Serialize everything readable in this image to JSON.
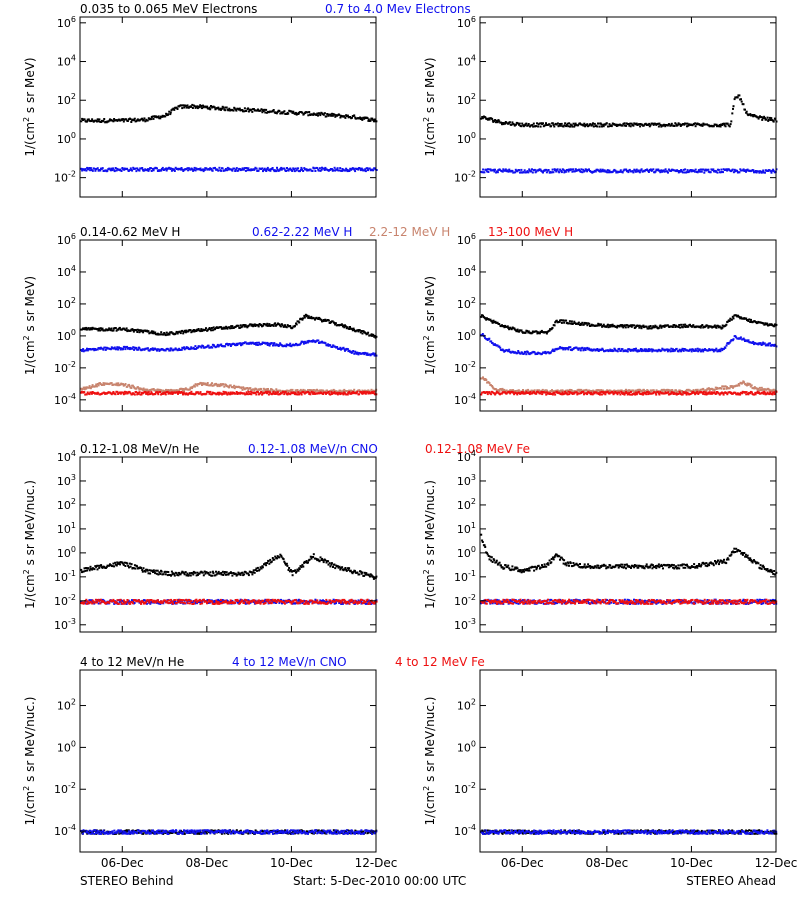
{
  "footer": {
    "left": "STEREO Behind",
    "center": "Start:  5-Dec-2010 00:00 UTC",
    "right": "STEREO Ahead"
  },
  "colors": {
    "black": "#000000",
    "blue": "#1010ee",
    "tan": "#c8846e",
    "red": "#ee1010"
  },
  "rows": [
    {
      "legend": [
        {
          "text": "0.035 to 0.065 MeV Electrons",
          "color": "#000000"
        },
        {
          "text": "0.7 to 4.0 Mev Electrons",
          "color": "#1010ee"
        }
      ]
    },
    {
      "legend": [
        {
          "text": "0.14-0.62 MeV H",
          "color": "#000000"
        },
        {
          "text": "0.62-2.22 MeV H",
          "color": "#1010ee"
        },
        {
          "text": "2.2-12 MeV H",
          "color": "#c8846e"
        },
        {
          "text": "13-100 MeV H",
          "color": "#ee1010"
        }
      ]
    },
    {
      "legend": [
        {
          "text": "0.12-1.08 MeV/n He",
          "color": "#000000"
        },
        {
          "text": "0.12-1.08 MeV/n CNO",
          "color": "#1010ee"
        },
        {
          "text": "0.12-1.08 MeV Fe",
          "color": "#ee1010"
        }
      ]
    },
    {
      "legend": [
        {
          "text": "4 to 12 MeV/n He",
          "color": "#000000"
        },
        {
          "text": "4 to 12 MeV/n CNO",
          "color": "#1010ee"
        },
        {
          "text": "4 to 12 MeV Fe",
          "color": "#ee1010"
        }
      ]
    }
  ],
  "chart_data": [
    {
      "id": "behind-electrons",
      "type": "scatter",
      "spacecraft": "STEREO Behind",
      "ylabel": "1/(cm2 s sr MeV)",
      "yscale": "log",
      "ylim": [
        0.001,
        2000000
      ],
      "yticks": [
        "10-2",
        "100",
        "102",
        "104",
        "106"
      ],
      "ytick_values": [
        0.01,
        1,
        100,
        10000,
        1000000
      ],
      "xlim": [
        0,
        7
      ],
      "xticks": [
        "06-Dec",
        "08-Dec",
        "10-Dec",
        "12-Dec"
      ],
      "xtick_values": [
        1,
        3,
        5,
        7
      ],
      "series": [
        {
          "name": "0.035 to 0.065 MeV Electrons",
          "color": "#000000",
          "x": [
            0,
            1,
            1.5,
            2,
            2.3,
            2.6,
            3.5,
            4.5,
            5.5,
            6.5,
            7
          ],
          "y": [
            10,
            10,
            11,
            18,
            50,
            55,
            40,
            30,
            22,
            15,
            10
          ]
        },
        {
          "name": "0.7 to 4.0 Mev Electrons",
          "color": "#1010ee",
          "x": [
            0,
            1,
            2,
            3,
            4,
            5,
            6,
            7
          ],
          "y": [
            0.03,
            0.03,
            0.03,
            0.03,
            0.03,
            0.03,
            0.03,
            0.03
          ]
        }
      ]
    },
    {
      "id": "ahead-electrons",
      "type": "scatter",
      "spacecraft": "STEREO Ahead",
      "ylabel": "1/(cm2 s sr MeV)",
      "yscale": "log",
      "ylim": [
        0.001,
        2000000
      ],
      "yticks": [
        "10-2",
        "100",
        "102",
        "104",
        "106"
      ],
      "ytick_values": [
        0.01,
        1,
        100,
        10000,
        1000000
      ],
      "xlim": [
        0,
        7
      ],
      "xticks": [
        "06-Dec",
        "08-Dec",
        "10-Dec",
        "12-Dec"
      ],
      "xtick_values": [
        1,
        3,
        5,
        7
      ],
      "series": [
        {
          "name": "0.035 to 0.065 MeV Electrons",
          "color": "#000000",
          "x": [
            0,
            0.5,
            1,
            2,
            3,
            4,
            5,
            5.9,
            6,
            6.1,
            6.3,
            6.5,
            7
          ],
          "y": [
            15,
            8,
            6,
            6,
            6,
            6,
            6,
            6,
            120,
            200,
            20,
            15,
            10
          ]
        },
        {
          "name": "0.7 to 4.0 Mev Electrons",
          "color": "#1010ee",
          "x": [
            0,
            1,
            2,
            3,
            4,
            5,
            6,
            7
          ],
          "y": [
            0.025,
            0.025,
            0.025,
            0.025,
            0.025,
            0.025,
            0.025,
            0.025
          ]
        }
      ]
    },
    {
      "id": "behind-protons",
      "type": "scatter",
      "spacecraft": "STEREO Behind",
      "ylabel": "1/(cm2 s sr MeV)",
      "yscale": "log",
      "ylim": [
        2e-05,
        1000000
      ],
      "yticks": [
        "10-4",
        "10-2",
        "100",
        "102",
        "104",
        "106"
      ],
      "ytick_values": [
        0.0001,
        0.01,
        1,
        100,
        10000,
        1000000
      ],
      "xlim": [
        0,
        7
      ],
      "xticks": [
        "06-Dec",
        "08-Dec",
        "10-Dec",
        "12-Dec"
      ],
      "xtick_values": [
        1,
        3,
        5,
        7
      ],
      "series": [
        {
          "name": "0.14-0.62 MeV H",
          "color": "#000000",
          "x": [
            0,
            1,
            2,
            3,
            4,
            4.6,
            5,
            5.3,
            5.8,
            6.3,
            7
          ],
          "y": [
            3,
            3,
            1.5,
            3,
            5,
            6,
            4,
            20,
            10,
            4,
            1
          ]
        },
        {
          "name": "0.62-2.22 MeV H",
          "color": "#1010ee",
          "x": [
            0,
            1,
            2,
            3,
            4,
            5,
            5.5,
            6,
            6.5,
            7
          ],
          "y": [
            0.15,
            0.2,
            0.15,
            0.25,
            0.4,
            0.3,
            0.6,
            0.25,
            0.1,
            0.08
          ]
        },
        {
          "name": "2.2-12 MeV H",
          "color": "#c8846e",
          "x": [
            0,
            0.5,
            1,
            1.5,
            2,
            2.5,
            2.8,
            3.3,
            4,
            5,
            6,
            7
          ],
          "y": [
            0.0005,
            0.0012,
            0.001,
            0.0005,
            0.0004,
            0.0005,
            0.0012,
            0.001,
            0.0005,
            0.0004,
            0.0004,
            0.0004
          ]
        },
        {
          "name": "13-100 MeV H",
          "color": "#ee1010",
          "x": [
            0,
            1,
            2,
            3,
            4,
            5,
            6,
            7
          ],
          "y": [
            0.0003,
            0.0003,
            0.0003,
            0.0003,
            0.0003,
            0.0003,
            0.0003,
            0.0003
          ]
        }
      ]
    },
    {
      "id": "ahead-protons",
      "type": "scatter",
      "spacecraft": "STEREO Ahead",
      "ylabel": "1/(cm2 s sr MeV)",
      "yscale": "log",
      "ylim": [
        2e-05,
        1000000
      ],
      "yticks": [
        "10-4",
        "10-2",
        "100",
        "102",
        "104",
        "106"
      ],
      "ytick_values": [
        0.0001,
        0.01,
        1,
        100,
        10000,
        1000000
      ],
      "xlim": [
        0,
        7
      ],
      "xticks": [
        "06-Dec",
        "08-Dec",
        "10-Dec",
        "12-Dec"
      ],
      "xtick_values": [
        1,
        3,
        5,
        7
      ],
      "series": [
        {
          "name": "0.14-0.62 MeV H",
          "color": "#000000",
          "x": [
            0,
            0.5,
            1,
            1.6,
            1.8,
            2.5,
            3,
            4,
            5,
            5.7,
            6,
            6.5,
            7
          ],
          "y": [
            20,
            5,
            2,
            2,
            10,
            6,
            5,
            4,
            5,
            4,
            20,
            8,
            5
          ]
        },
        {
          "name": "0.62-2.22 MeV H",
          "color": "#1010ee",
          "x": [
            0,
            0.3,
            0.5,
            1,
            1.6,
            1.8,
            3,
            4,
            5,
            5.7,
            6,
            6.5,
            7
          ],
          "y": [
            1.5,
            0.4,
            0.15,
            0.1,
            0.1,
            0.2,
            0.15,
            0.15,
            0.15,
            0.15,
            1,
            0.4,
            0.3
          ]
        },
        {
          "name": "2.2-12 MeV H",
          "color": "#c8846e",
          "x": [
            0,
            0.1,
            0.3,
            0.6,
            1,
            3,
            5,
            6,
            6.2,
            6.5,
            7
          ],
          "y": [
            0.003,
            0.002,
            0.0006,
            0.0004,
            0.0004,
            0.0004,
            0.0004,
            0.0008,
            0.0015,
            0.0006,
            0.0004
          ]
        },
        {
          "name": "13-100 MeV H",
          "color": "#ee1010",
          "x": [
            0,
            1,
            2,
            3,
            4,
            5,
            6,
            7
          ],
          "y": [
            0.0003,
            0.0003,
            0.0003,
            0.0003,
            0.0003,
            0.0003,
            0.0003,
            0.0003
          ]
        }
      ]
    },
    {
      "id": "behind-ions-low",
      "type": "scatter",
      "spacecraft": "STEREO Behind",
      "ylabel": "1/(cm2 s sr MeV/nuc.)",
      "yscale": "log",
      "ylim": [
        0.0005,
        10000
      ],
      "yticks": [
        "10-3",
        "10-2",
        "10-1",
        "100",
        "101",
        "102",
        "103",
        "104"
      ],
      "ytick_values": [
        0.001,
        0.01,
        0.1,
        1,
        10,
        100,
        1000,
        10000
      ],
      "xlim": [
        0,
        7
      ],
      "xticks": [
        "06-Dec",
        "08-Dec",
        "10-Dec",
        "12-Dec"
      ],
      "xtick_values": [
        1,
        3,
        5,
        7
      ],
      "series": [
        {
          "name": "0.12-1.08 MeV/n He",
          "color": "#000000",
          "x": [
            0,
            0.5,
            1,
            1.5,
            2,
            3,
            4,
            4.3,
            4.7,
            5,
            5.5,
            6,
            7
          ],
          "y": [
            0.2,
            0.3,
            0.4,
            0.2,
            0.15,
            0.15,
            0.15,
            0.3,
            0.9,
            0.15,
            0.8,
            0.3,
            0.1
          ]
        },
        {
          "name": "0.12-1.08 MeV/n CNO",
          "color": "#1010ee",
          "x": [
            0,
            1,
            2,
            3,
            4,
            5,
            6,
            7
          ],
          "y": [
            0.01,
            0.01,
            0.01,
            0.01,
            0.01,
            0.01,
            0.01,
            0.01
          ]
        },
        {
          "name": "0.12-1.08 MeV Fe",
          "color": "#ee1010",
          "x": [
            0,
            1,
            2,
            3,
            4,
            5,
            6,
            7
          ],
          "y": [
            0.01,
            0.01,
            0.01,
            0.01,
            0.01,
            0.01,
            0.01,
            0.01
          ]
        }
      ]
    },
    {
      "id": "ahead-ions-low",
      "type": "scatter",
      "spacecraft": "STEREO Ahead",
      "ylabel": "1/(cm2 s sr MeV/nuc.)",
      "yscale": "log",
      "ylim": [
        0.0005,
        10000
      ],
      "yticks": [
        "10-3",
        "10-2",
        "10-1",
        "100",
        "101",
        "102",
        "103",
        "104"
      ],
      "ytick_values": [
        0.001,
        0.01,
        0.1,
        1,
        10,
        100,
        1000,
        10000
      ],
      "xlim": [
        0,
        7
      ],
      "xticks": [
        "06-Dec",
        "08-Dec",
        "10-Dec",
        "12-Dec"
      ],
      "xtick_values": [
        1,
        3,
        5,
        7
      ],
      "series": [
        {
          "name": "0.12-1.08 MeV/n He",
          "color": "#000000",
          "x": [
            0,
            0.15,
            0.5,
            1,
            1.5,
            1.8,
            2,
            2.5,
            3,
            4,
            5,
            5.8,
            6,
            6.3,
            6.6,
            7
          ],
          "y": [
            6,
            0.8,
            0.3,
            0.2,
            0.3,
            0.9,
            0.4,
            0.3,
            0.3,
            0.3,
            0.3,
            0.5,
            1.5,
            0.8,
            0.3,
            0.15
          ]
        },
        {
          "name": "0.12-1.08 MeV/n CNO",
          "color": "#1010ee",
          "x": [
            0,
            1,
            2,
            3,
            4,
            5,
            6,
            7
          ],
          "y": [
            0.01,
            0.01,
            0.01,
            0.01,
            0.01,
            0.01,
            0.01,
            0.01
          ]
        },
        {
          "name": "0.12-1.08 MeV Fe",
          "color": "#ee1010",
          "x": [
            0,
            1,
            2,
            3,
            4,
            5,
            6,
            7
          ],
          "y": [
            0.01,
            0.01,
            0.01,
            0.01,
            0.01,
            0.01,
            0.01,
            0.01
          ]
        }
      ]
    },
    {
      "id": "behind-ions-high",
      "type": "scatter",
      "spacecraft": "STEREO Behind",
      "ylabel": "1/(cm2 s sr MeV/nuc.)",
      "yscale": "log",
      "ylim": [
        1e-05,
        5000
      ],
      "yticks": [
        "10-4",
        "10-2",
        "100",
        "102"
      ],
      "ytick_values": [
        0.0001,
        0.01,
        1,
        100
      ],
      "xlim": [
        0,
        7
      ],
      "xticks": [
        "06-Dec",
        "08-Dec",
        "10-Dec",
        "12-Dec"
      ],
      "xtick_values": [
        1,
        3,
        5,
        7
      ],
      "series": [
        {
          "name": "4 to 12 MeV/n He",
          "color": "#000000",
          "x": [
            0,
            1,
            2,
            3,
            4,
            5,
            6,
            7
          ],
          "y": [
            0.0001,
            0.0001,
            0.0001,
            0.0001,
            0.0001,
            0.0001,
            0.0001,
            0.0001
          ]
        },
        {
          "name": "4 to 12 MeV/n CNO",
          "color": "#1010ee",
          "x": [
            0,
            1,
            2,
            3,
            4,
            5,
            6,
            7
          ],
          "y": [
            0.0001,
            0.0001,
            0.0001,
            0.0001,
            0.0001,
            0.0001,
            0.0001,
            0.0001
          ]
        },
        {
          "name": "4 to 12 MeV Fe",
          "color": "#ee1010",
          "x": [],
          "y": []
        }
      ]
    },
    {
      "id": "ahead-ions-high",
      "type": "scatter",
      "spacecraft": "STEREO Ahead",
      "ylabel": "1/(cm2 s sr MeV/nuc.)",
      "yscale": "log",
      "ylim": [
        1e-05,
        5000
      ],
      "yticks": [
        "10-4",
        "10-2",
        "100",
        "102"
      ],
      "ytick_values": [
        0.0001,
        0.01,
        1,
        100
      ],
      "xlim": [
        0,
        7
      ],
      "xticks": [
        "06-Dec",
        "08-Dec",
        "10-Dec",
        "12-Dec"
      ],
      "xtick_values": [
        1,
        3,
        5,
        7
      ],
      "series": [
        {
          "name": "4 to 12 MeV/n He",
          "color": "#000000",
          "x": [
            0,
            1,
            2,
            3,
            4,
            5,
            6,
            7
          ],
          "y": [
            0.0001,
            0.0001,
            0.0001,
            0.0001,
            0.0001,
            0.0001,
            0.0001,
            0.0001
          ]
        },
        {
          "name": "4 to 12 MeV/n CNO",
          "color": "#1010ee",
          "x": [
            0,
            1,
            2,
            3,
            4,
            5,
            6,
            7
          ],
          "y": [
            0.0001,
            0.0001,
            0.0001,
            0.0001,
            0.0001,
            0.0001,
            0.0001,
            0.0001
          ]
        },
        {
          "name": "4 to 12 MeV Fe",
          "color": "#ee1010",
          "x": [],
          "y": []
        }
      ]
    }
  ]
}
